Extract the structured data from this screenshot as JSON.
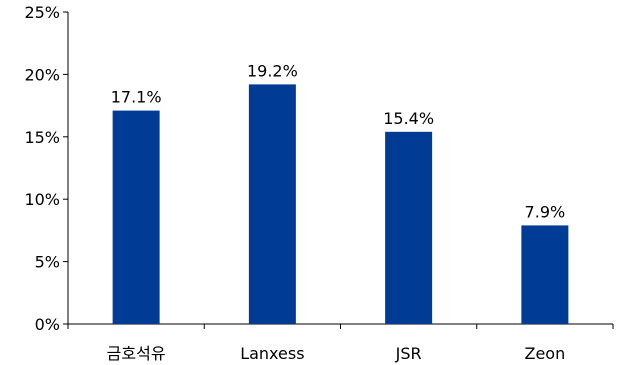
{
  "chart_data": {
    "type": "bar",
    "title": "",
    "xlabel": "",
    "ylabel": "",
    "categories": [
      "금호석유",
      "Lanxess",
      "JSR",
      "Zeon"
    ],
    "values": [
      17.1,
      19.2,
      15.4,
      7.9
    ],
    "data_labels": [
      "17.1%",
      "19.2%",
      "15.4%",
      "7.9%"
    ],
    "ylim": [
      0,
      25
    ],
    "yticks": [
      0,
      5,
      10,
      15,
      20,
      25
    ],
    "ytick_labels": [
      "0%",
      "5%",
      "10%",
      "15%",
      "20%",
      "25%"
    ],
    "grid": false,
    "legend": "none",
    "bar_color": "#003C96"
  }
}
